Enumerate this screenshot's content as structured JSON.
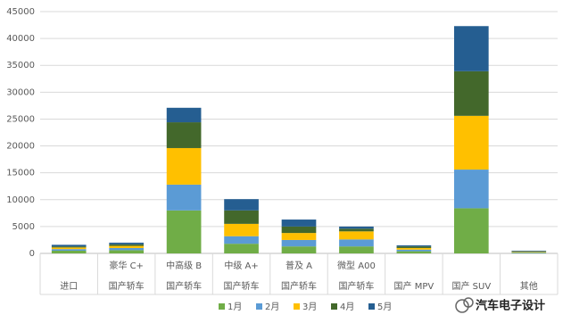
{
  "chart_data": {
    "type": "stacked_bar",
    "categories": [
      null,
      "豪华 C+",
      "中高级 B",
      "中级 A+",
      "普及 A",
      "微型 A00",
      null,
      null,
      null
    ],
    "subcategories": [
      "进口",
      "国产轿车",
      "国产轿车",
      "国产轿车",
      "国产轿车",
      "国产轿车",
      "国产 MPV",
      "国产 SUV",
      "其他"
    ],
    "series": [
      {
        "name": "1月",
        "color": "#70ad47",
        "values": [
          500,
          600,
          8000,
          1800,
          1300,
          1300,
          400,
          8400,
          100
        ]
      },
      {
        "name": "2月",
        "color": "#5b9bd5",
        "values": [
          300,
          400,
          4800,
          1400,
          1200,
          1300,
          300,
          7200,
          100
        ]
      },
      {
        "name": "3月",
        "color": "#ffc000",
        "values": [
          300,
          400,
          6800,
          2300,
          1300,
          1500,
          300,
          10000,
          100
        ]
      },
      {
        "name": "4月",
        "color": "#43682b",
        "values": [
          200,
          300,
          4800,
          2500,
          1200,
          500,
          300,
          8300,
          100
        ]
      },
      {
        "name": "5月",
        "color": "#255e91",
        "values": [
          300,
          300,
          2700,
          2100,
          1300,
          400,
          200,
          8400,
          100
        ]
      }
    ],
    "ylim": [
      0,
      45000
    ],
    "yticks": [
      0,
      5000,
      10000,
      15000,
      20000,
      25000,
      30000,
      35000,
      40000,
      45000
    ],
    "grid": true,
    "legend": "bottom",
    "watermark": "汽车电子设计"
  }
}
